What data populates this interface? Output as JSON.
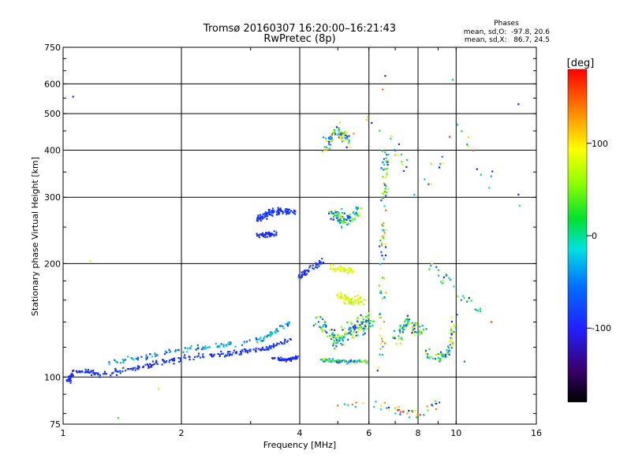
{
  "chart_data": {
    "type": "scatter",
    "title": "Tromsø 20160307 16:20:00–16:21:43",
    "subtitle": "RwPretec (8p)",
    "xlabel": "Frequency [MHz]",
    "ylabel": "Stationary phase Virtual Height [km]",
    "x_scale": "log",
    "y_scale": "log",
    "xlim": [
      1,
      16
    ],
    "ylim": [
      75,
      750
    ],
    "x_ticks": [
      1,
      2,
      4,
      6,
      8,
      10,
      16
    ],
    "y_ticks": [
      75,
      100,
      200,
      300,
      400,
      500,
      600,
      750
    ],
    "x_gridlines": [
      2,
      4,
      6,
      8,
      10
    ],
    "y_gridlines": [
      100,
      200,
      300,
      400,
      500,
      600
    ],
    "phase_stats": {
      "title": "Phases",
      "line1": "mean, sd,O:  -97.8, 20.6",
      "line2": "mean, sd,X:   86.7, 24.5"
    },
    "colorbar": {
      "label": "[deg]",
      "range": [
        -180,
        180
      ],
      "ticks": [
        {
          "value": 100,
          "label": "100"
        },
        {
          "value": 0,
          "label": "0"
        },
        {
          "value": -100,
          "label": "-100"
        }
      ]
    },
    "clusters": [
      {
        "name": "O-trace low",
        "points": [
          [
            1.03,
            97
          ],
          [
            1.06,
            103
          ],
          [
            1.15,
            104
          ],
          [
            1.25,
            101
          ],
          [
            1.4,
            104
          ],
          [
            1.6,
            107
          ],
          [
            1.8,
            110
          ],
          [
            2.0,
            112
          ],
          [
            2.3,
            114
          ],
          [
            2.6,
            115
          ],
          [
            2.9,
            117
          ],
          [
            3.2,
            118
          ],
          [
            3.5,
            122
          ],
          [
            3.8,
            125
          ]
        ],
        "spread": 0.025,
        "n": 260,
        "phase": [
          -110,
          -70
        ]
      },
      {
        "name": "X-trace low",
        "points": [
          [
            1.3,
            109
          ],
          [
            1.6,
            113
          ],
          [
            2.0,
            118
          ],
          [
            2.4,
            120
          ],
          [
            2.8,
            123
          ],
          [
            3.2,
            126
          ],
          [
            3.5,
            132
          ],
          [
            3.8,
            140
          ]
        ],
        "spread": 0.025,
        "n": 130,
        "phase": [
          -100,
          10
        ]
      },
      {
        "name": "Es band",
        "points": [
          [
            3.4,
            112
          ],
          [
            3.7,
            111
          ],
          [
            3.95,
            113
          ]
        ],
        "spread": 0.015,
        "n": 60,
        "phase": [
          -110,
          -80
        ]
      },
      {
        "name": "F-layer 270km",
        "points": [
          [
            3.1,
            262
          ],
          [
            3.4,
            275
          ],
          [
            3.9,
            275
          ]
        ],
        "spread": 0.03,
        "n": 110,
        "phase": [
          -110,
          -70
        ]
      },
      {
        "name": "F-layer 240km",
        "points": [
          [
            3.1,
            238
          ],
          [
            3.5,
            240
          ]
        ],
        "spread": 0.02,
        "n": 50,
        "phase": [
          -110,
          -80
        ]
      },
      {
        "name": "Rising trace",
        "points": [
          [
            4.0,
            185
          ],
          [
            4.3,
            195
          ],
          [
            4.6,
            205
          ]
        ],
        "spread": 0.03,
        "n": 45,
        "phase": [
          -110,
          -70
        ]
      },
      {
        "name": "Yellow 190km",
        "points": [
          [
            4.7,
            195
          ],
          [
            5.1,
            193
          ],
          [
            5.5,
            190
          ]
        ],
        "spread": 0.03,
        "n": 40,
        "phase": [
          60,
          110
        ]
      },
      {
        "name": "Yellow 160km",
        "points": [
          [
            5.0,
            165
          ],
          [
            5.4,
            160
          ],
          [
            5.9,
            158
          ]
        ],
        "spread": 0.04,
        "n": 60,
        "phase": [
          50,
          110
        ]
      },
      {
        "name": "Mixed 4.5-6",
        "points": [
          [
            4.5,
            140
          ],
          [
            5.0,
            125
          ],
          [
            5.5,
            135
          ],
          [
            6.0,
            140
          ]
        ],
        "spread": 0.08,
        "n": 170,
        "phase": [
          -110,
          110
        ]
      },
      {
        "name": "Band 110",
        "points": [
          [
            4.5,
            111
          ],
          [
            5.2,
            110
          ],
          [
            6.0,
            110
          ]
        ],
        "spread": 0.015,
        "n": 80,
        "phase": [
          -100,
          110
        ]
      },
      {
        "name": "High cluster 400-500",
        "points": [
          [
            4.6,
            410
          ],
          [
            5.0,
            450
          ],
          [
            5.3,
            420
          ]
        ],
        "spread": 0.06,
        "n": 80,
        "phase": [
          -110,
          140
        ]
      },
      {
        "name": "Mid cluster 250-300",
        "points": [
          [
            4.8,
            270
          ],
          [
            5.2,
            260
          ],
          [
            5.7,
            280
          ]
        ],
        "spread": 0.06,
        "n": 100,
        "phase": [
          -110,
          110
        ]
      },
      {
        "name": "Vertical 6.5",
        "points": [
          [
            6.4,
            100
          ],
          [
            6.5,
            200
          ],
          [
            6.6,
            300
          ],
          [
            6.6,
            400
          ]
        ],
        "spread": 0.06,
        "n": 90,
        "phase": [
          -110,
          150
        ]
      },
      {
        "name": "Cluster 7-8",
        "points": [
          [
            7.0,
            125
          ],
          [
            7.5,
            140
          ],
          [
            8.2,
            130
          ]
        ],
        "spread": 0.06,
        "n": 80,
        "phase": [
          -110,
          110
        ]
      },
      {
        "name": "Cluster 8-10",
        "points": [
          [
            8.3,
            115
          ],
          [
            9.0,
            112
          ],
          [
            9.6,
            118
          ],
          [
            10.0,
            145
          ]
        ],
        "spread": 0.05,
        "n": 70,
        "phase": [
          -100,
          110
        ]
      },
      {
        "name": "Bottom scatter",
        "points": [
          [
            5,
            85
          ],
          [
            6,
            85
          ],
          [
            7,
            82
          ],
          [
            8,
            80
          ],
          [
            9,
            85
          ]
        ],
        "spread": 0.04,
        "n": 45,
        "phase": [
          -120,
          170
        ]
      },
      {
        "name": "Sparse high",
        "points": [
          [
            5,
            350
          ],
          [
            6,
            500
          ],
          [
            7,
            400
          ],
          [
            8,
            300
          ],
          [
            10,
            450
          ],
          [
            13,
            300
          ]
        ],
        "spread": 0.1,
        "n": 40,
        "phase": [
          -120,
          170
        ]
      },
      {
        "name": "Sparse 8-12",
        "points": [
          [
            8.5,
            200
          ],
          [
            9.5,
            180
          ],
          [
            10.5,
            160
          ],
          [
            11.5,
            150
          ]
        ],
        "spread": 0.06,
        "n": 30,
        "phase": [
          -110,
          110
        ]
      }
    ],
    "outliers": [
      {
        "x": 1.06,
        "y": 555,
        "phase": -100
      },
      {
        "x": 1.17,
        "y": 203,
        "phase": 90
      },
      {
        "x": 1.38,
        "y": 78,
        "phase": 30
      },
      {
        "x": 1.75,
        "y": 93,
        "phase": 110
      },
      {
        "x": 14.4,
        "y": 530,
        "phase": -100
      },
      {
        "x": 14.4,
        "y": 305,
        "phase": -100
      },
      {
        "x": 14.5,
        "y": 285,
        "phase": 0
      },
      {
        "x": 6.6,
        "y": 630,
        "phase": -100
      },
      {
        "x": 9.8,
        "y": 615,
        "phase": 10
      },
      {
        "x": 6.5,
        "y": 580,
        "phase": 150
      },
      {
        "x": 12.3,
        "y": 140,
        "phase": 160
      },
      {
        "x": 10.5,
        "y": 110,
        "phase": -60
      }
    ]
  }
}
